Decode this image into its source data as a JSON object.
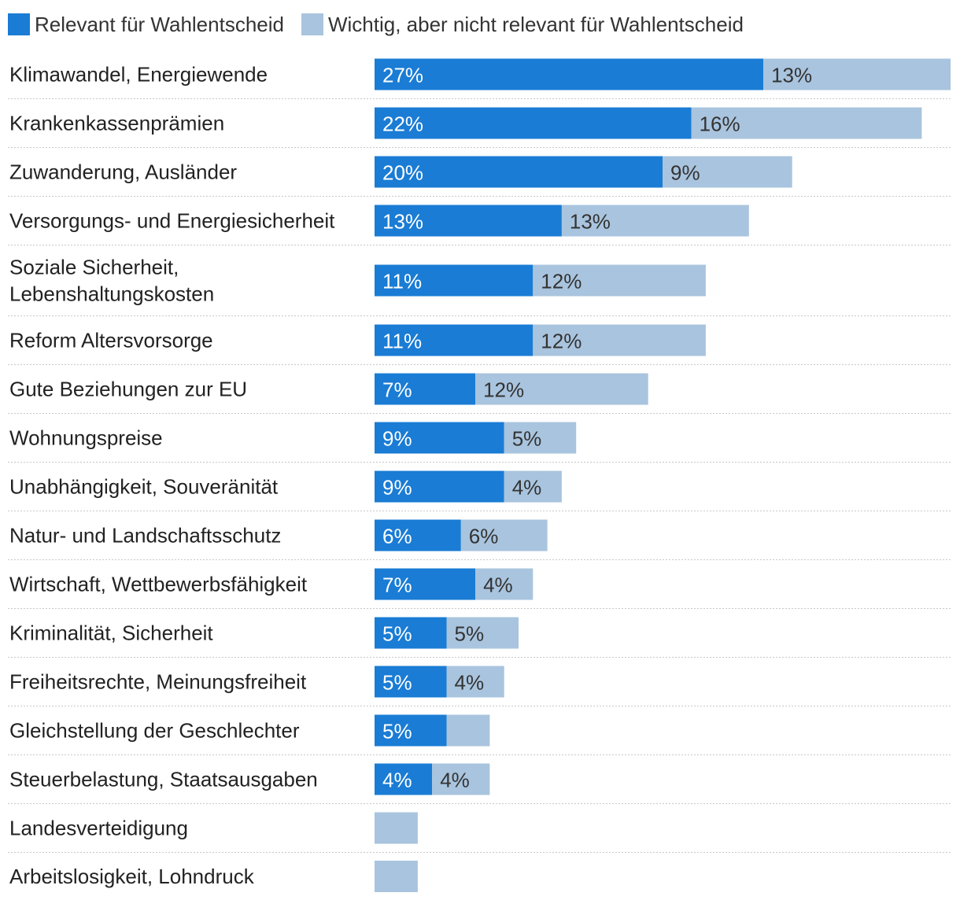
{
  "legend": {
    "relevant_label": "Relevant für Wahlentscheid",
    "important_label": "Wichtig, aber nicht relevant für Wahlentscheid"
  },
  "colors": {
    "relevant": "#1a7cd4",
    "important": "#a9c4de",
    "gridline": "#c8c8c8",
    "label_on_dark": "#ffffff",
    "label_on_light": "#333333"
  },
  "chart_data": {
    "type": "bar",
    "orientation": "horizontal",
    "stacked": true,
    "legend_position": "top-left",
    "categories": [
      [
        "Klimawandel, Energiewende"
      ],
      [
        "Krankenkassenprämien"
      ],
      [
        "Zuwanderung, Ausländer"
      ],
      [
        "Versorgungs- und Energiesicherheit"
      ],
      [
        "Soziale Sicherheit,",
        "Lebenshaltungskosten"
      ],
      [
        "Reform Altersvorsorge"
      ],
      [
        "Gute Beziehungen zur EU"
      ],
      [
        "Wohnungspreise"
      ],
      [
        "Unabhängigkeit, Souveränität"
      ],
      [
        "Natur- und Landschaftsschutz"
      ],
      [
        "Wirtschaft, Wettbewerbsfähigkeit"
      ],
      [
        "Kriminalität, Sicherheit"
      ],
      [
        "Freiheitsrechte, Meinungsfreiheit"
      ],
      [
        "Gleichstellung der Geschlechter"
      ],
      [
        "Steuerbelastung, Staatsausgaben"
      ],
      [
        "Landesverteidigung"
      ],
      [
        "Arbeitslosigkeit, Lohndruck"
      ]
    ],
    "series": [
      {
        "name": "Relevant für Wahlentscheid",
        "values": [
          27,
          22,
          20,
          13,
          11,
          11,
          7,
          9,
          9,
          6,
          7,
          5,
          5,
          5,
          4,
          0,
          0
        ],
        "labels": [
          "27%",
          "22%",
          "20%",
          "13%",
          "11%",
          "11%",
          "7%",
          "9%",
          "9%",
          "6%",
          "7%",
          "5%",
          "5%",
          "5%",
          "4%",
          "",
          ""
        ]
      },
      {
        "name": "Wichtig, aber nicht relevant für Wahlentscheid",
        "values": [
          13,
          16,
          9,
          13,
          12,
          12,
          12,
          5,
          4,
          6,
          4,
          5,
          4,
          3,
          4,
          3,
          3
        ],
        "labels": [
          "13%",
          "16%",
          "9%",
          "13%",
          "12%",
          "12%",
          "12%",
          "5%",
          "4%",
          "6%",
          "4%",
          "5%",
          "4%",
          "",
          "4%",
          "",
          ""
        ]
      }
    ],
    "xlim": [
      0,
      40
    ],
    "xlabel": "",
    "ylabel": "",
    "grid": false
  }
}
